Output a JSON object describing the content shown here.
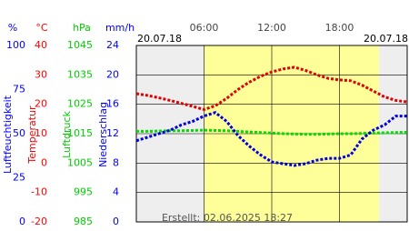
{
  "chart_data": {
    "type": "line",
    "date_left": "20.07.18",
    "date_right": "20.07.18",
    "footnote": "Erstellt: 02.06.2025 18:27",
    "xlim": [
      0,
      24
    ],
    "xticks": [
      {
        "value": 6,
        "label": "06:00"
      },
      {
        "value": 12,
        "label": "12:00"
      },
      {
        "value": 18,
        "label": "18:00"
      }
    ],
    "daylight": [
      6,
      21.5
    ],
    "grid": true,
    "axes": [
      {
        "unit": "%",
        "label": "Luftfeuchtigkeit",
        "color": "#0000ff",
        "lim": [
          0,
          100
        ],
        "ticks": [
          0,
          25,
          50,
          75,
          100
        ]
      },
      {
        "unit": "°C",
        "label": "Temperatur",
        "color": "#ff0000",
        "lim": [
          -20,
          40
        ],
        "ticks": [
          -20,
          -10,
          0,
          10,
          20,
          30,
          40
        ]
      },
      {
        "unit": "hPa",
        "label": "Luftdruck",
        "color": "#00cc00",
        "lim": [
          985,
          1045
        ],
        "ticks": [
          985,
          995,
          1005,
          1015,
          1025,
          1035,
          1045
        ]
      },
      {
        "unit": "mm/h",
        "label": "Niederschlag",
        "color": "#0000ff",
        "lim": [
          0,
          24
        ],
        "ticks": [
          0,
          4,
          8,
          12,
          16,
          20,
          24
        ]
      }
    ],
    "x": [
      0,
      1,
      2,
      3,
      4,
      5,
      6,
      7,
      8,
      9,
      10,
      11,
      12,
      13,
      14,
      15,
      16,
      17,
      18,
      19,
      20,
      21,
      22,
      23,
      24
    ],
    "series": [
      {
        "name": "Temperatur",
        "axis": 1,
        "color": "#dd0000",
        "values": [
          23.6,
          23,
          22.2,
          21.3,
          20.3,
          19.3,
          18.2,
          19.5,
          22,
          25,
          27.5,
          29.5,
          31,
          32,
          32.6,
          31.5,
          30,
          28.8,
          28.3,
          28,
          26.5,
          24.5,
          22.5,
          21.3,
          20.8
        ]
      },
      {
        "name": "Luftdruck",
        "axis": 2,
        "color": "#00dd00",
        "values": [
          1015.8,
          1015.8,
          1015.9,
          1016,
          1016,
          1016.1,
          1016.2,
          1016.1,
          1016,
          1015.8,
          1015.6,
          1015.4,
          1015.2,
          1015,
          1014.9,
          1014.8,
          1014.8,
          1014.9,
          1015,
          1015,
          1015.1,
          1015.2,
          1015.3,
          1015.4,
          1015.5
        ]
      },
      {
        "name": "Luftfeuchtigkeit",
        "axis": 0,
        "color": "#0000dd",
        "values": [
          46,
          48,
          50,
          52,
          55,
          57,
          60,
          62,
          57,
          49,
          43,
          38,
          34,
          33,
          32,
          33,
          35,
          36,
          36,
          38,
          47,
          52,
          55,
          60,
          60
        ]
      }
    ]
  }
}
